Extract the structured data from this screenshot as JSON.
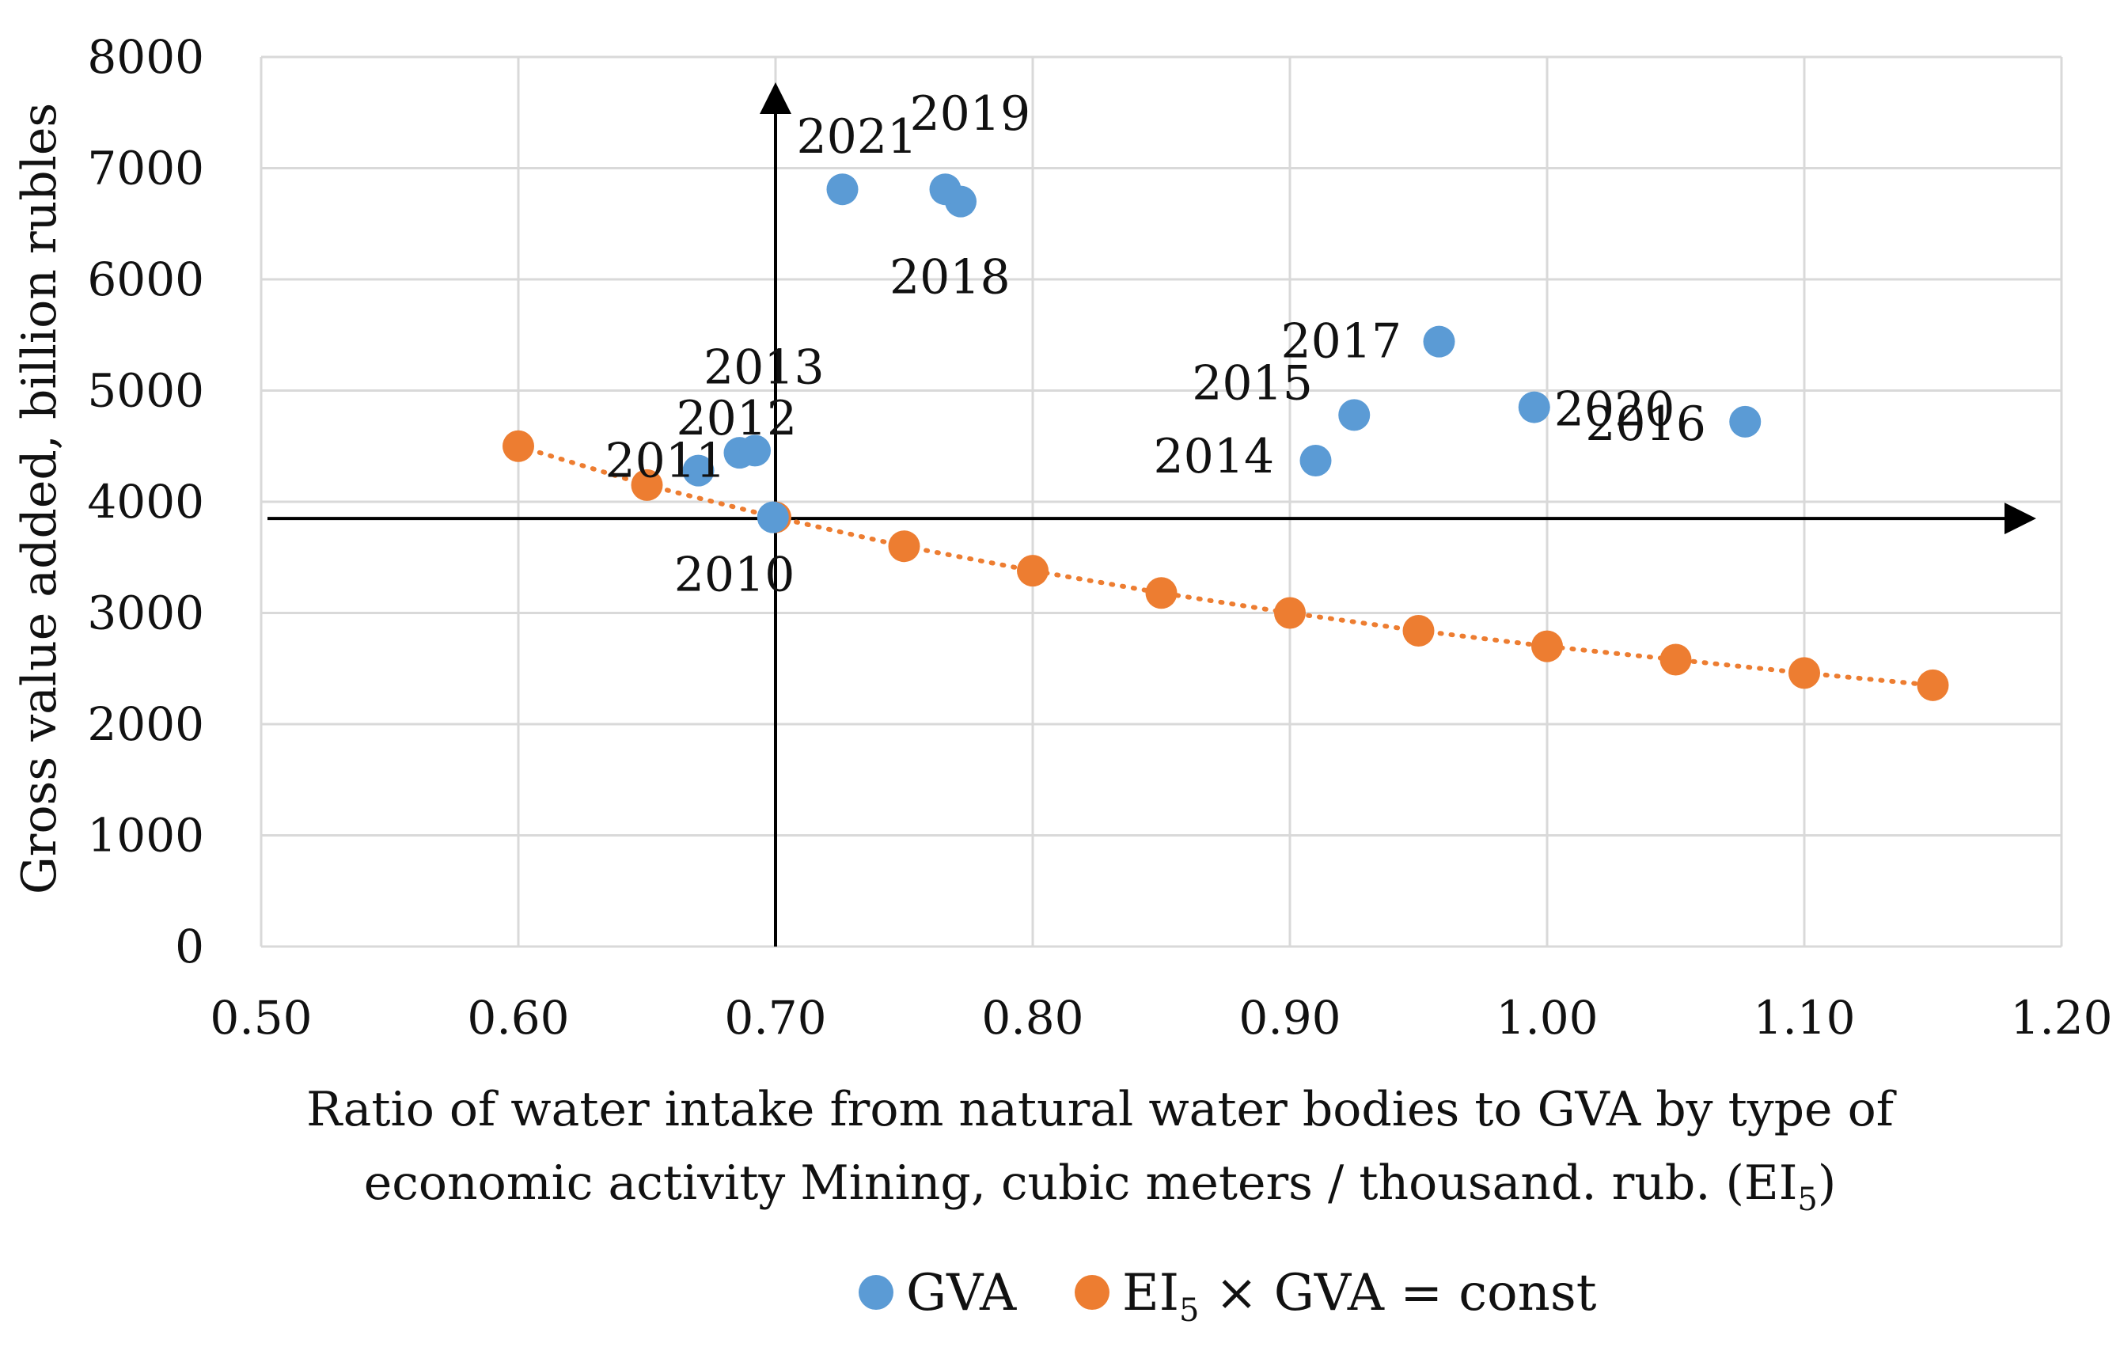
{
  "chart_data": {
    "type": "scatter",
    "xlabel_line1": "Ratio of water intake from natural water bodies to GVA by type of",
    "xlabel_line2_prefix": "economic activity Mining, cubic meters / thousand. rub. (EI",
    "xlabel_line2_sub": "5",
    "xlabel_line2_suffix": ")",
    "ylabel": "Gross value added, billion rubles",
    "xlim": [
      0.5,
      1.2
    ],
    "ylim": [
      0,
      8000
    ],
    "x_ticks": [
      "0.50",
      "0.60",
      "0.70",
      "0.80",
      "0.90",
      "1.00",
      "1.10",
      "1.20"
    ],
    "y_ticks": [
      "0",
      "1000",
      "2000",
      "3000",
      "4000",
      "5000",
      "6000",
      "7000",
      "8000"
    ],
    "reference_axes": {
      "x": 0.7,
      "y": 3850
    },
    "series": [
      {
        "name": "GVA",
        "color": "#5b9bd5",
        "points": [
          {
            "label": "2010",
            "x": 0.699,
            "y": 3860
          },
          {
            "label": "2011",
            "x": 0.67,
            "y": 4280
          },
          {
            "label": "2012",
            "x": 0.686,
            "y": 4440
          },
          {
            "label": "2013",
            "x": 0.692,
            "y": 4460
          },
          {
            "label": "2014",
            "x": 0.91,
            "y": 4370
          },
          {
            "label": "2015",
            "x": 0.925,
            "y": 4780
          },
          {
            "label": "2016",
            "x": 1.077,
            "y": 4720
          },
          {
            "label": "2017",
            "x": 0.958,
            "y": 5440
          },
          {
            "label": "2018",
            "x": 0.772,
            "y": 6700
          },
          {
            "label": "2019",
            "x": 0.766,
            "y": 6810
          },
          {
            "label": "2020",
            "x": 0.995,
            "y": 4850
          },
          {
            "label": "2021",
            "x": 0.726,
            "y": 6810
          }
        ]
      },
      {
        "name": "EI5 × GVA = const",
        "legend_prefix": "EI",
        "legend_sub": "5",
        "legend_suffix": " × GVA = const",
        "color": "#ed7d31",
        "trendline": "dotted",
        "points": [
          {
            "x": 0.6,
            "y": 4500
          },
          {
            "x": 0.65,
            "y": 4150
          },
          {
            "x": 0.7,
            "y": 3860
          },
          {
            "x": 0.75,
            "y": 3600
          },
          {
            "x": 0.8,
            "y": 3380
          },
          {
            "x": 0.85,
            "y": 3180
          },
          {
            "x": 0.9,
            "y": 3000
          },
          {
            "x": 0.95,
            "y": 2840
          },
          {
            "x": 1.0,
            "y": 2700
          },
          {
            "x": 1.05,
            "y": 2580
          },
          {
            "x": 1.1,
            "y": 2460
          },
          {
            "x": 1.15,
            "y": 2350
          }
        ]
      }
    ]
  }
}
